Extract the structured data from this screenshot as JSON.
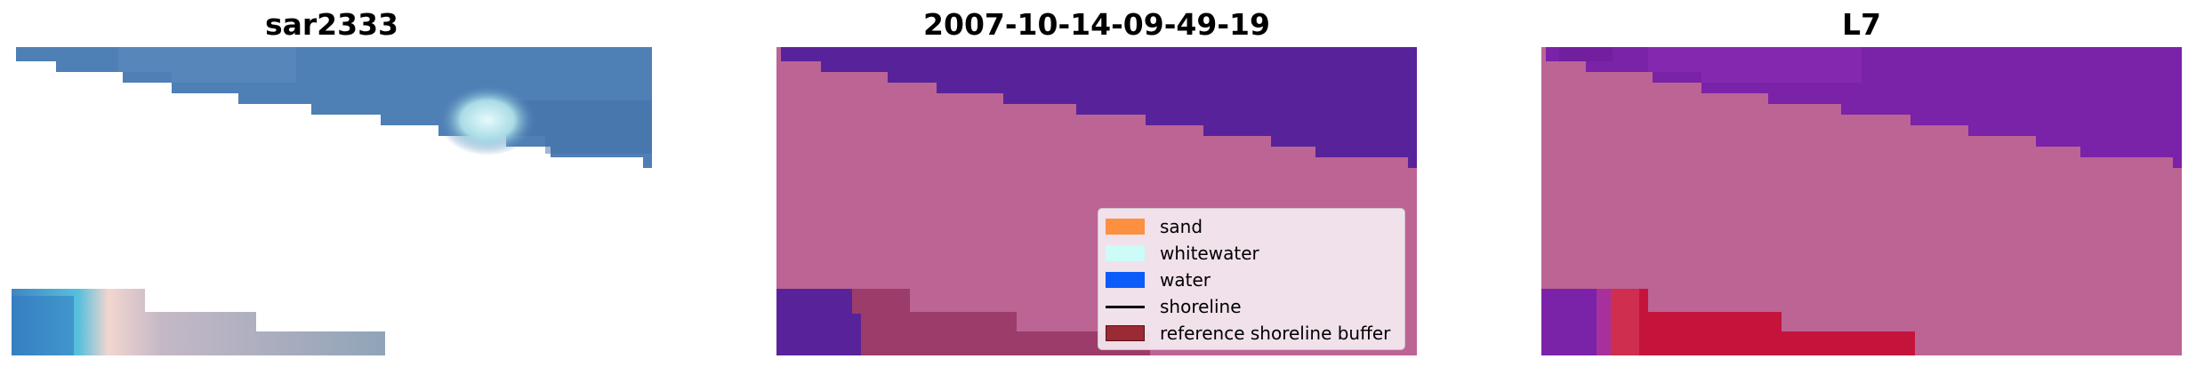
{
  "panels": [
    {
      "title": "sar2333"
    },
    {
      "title": "2007-10-14-09-49-19"
    },
    {
      "title": "L7"
    }
  ],
  "legend": {
    "items": [
      {
        "label": "sand",
        "color": "#fd8f40"
      },
      {
        "label": "whitewater",
        "color": "#ccfbf8"
      },
      {
        "label": "water",
        "color": "#0c5cf9"
      },
      {
        "label": "shoreline",
        "color": "#000000"
      },
      {
        "label": "reference shoreline buffer",
        "color": "#9a2a33"
      }
    ]
  },
  "colors": {
    "rgb_water": "#4d7fb4",
    "rgb_whitewater": "#d9f6f8",
    "class_water": "#58239a",
    "class_sand_background": "#bc6494",
    "buffer_overlay": "#9c3c6a",
    "l7_water": "#7a22a8",
    "l7_buffer": "#c4143c"
  }
}
